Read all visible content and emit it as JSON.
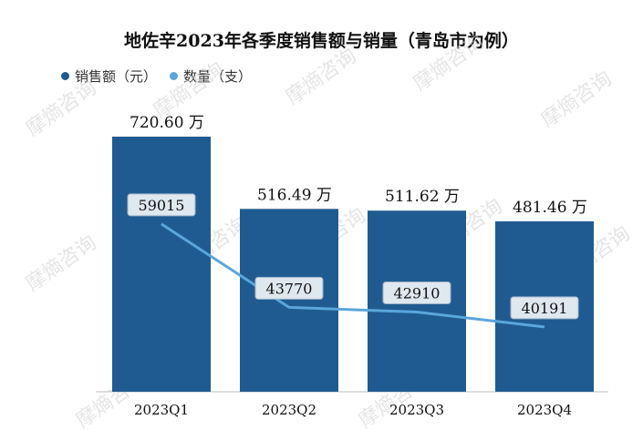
{
  "chart_data": {
    "type": "bar",
    "title": "地佐辛2023年各季度销售额与销量（青岛市为例）",
    "categories": [
      "2023Q1",
      "2023Q2",
      "2023Q3",
      "2023Q4"
    ],
    "series": [
      {
        "name": "销售额（元）",
        "type": "bar",
        "values": [
          720.6,
          516.49,
          511.62,
          481.46
        ],
        "labels": [
          "720.60 万",
          "516.49 万",
          "511.62 万",
          "481.46 万"
        ],
        "color": "#1f5b91"
      },
      {
        "name": "数量（支）",
        "type": "line",
        "values": [
          59015,
          43770,
          42910,
          40191
        ],
        "labels": [
          "59015",
          "43770",
          "42910",
          "40191"
        ],
        "color": "#5aa6dc"
      }
    ],
    "xlabel": "",
    "ylabel": "",
    "grid": false,
    "legend": "top-left"
  },
  "watermark": "摩熵咨询"
}
